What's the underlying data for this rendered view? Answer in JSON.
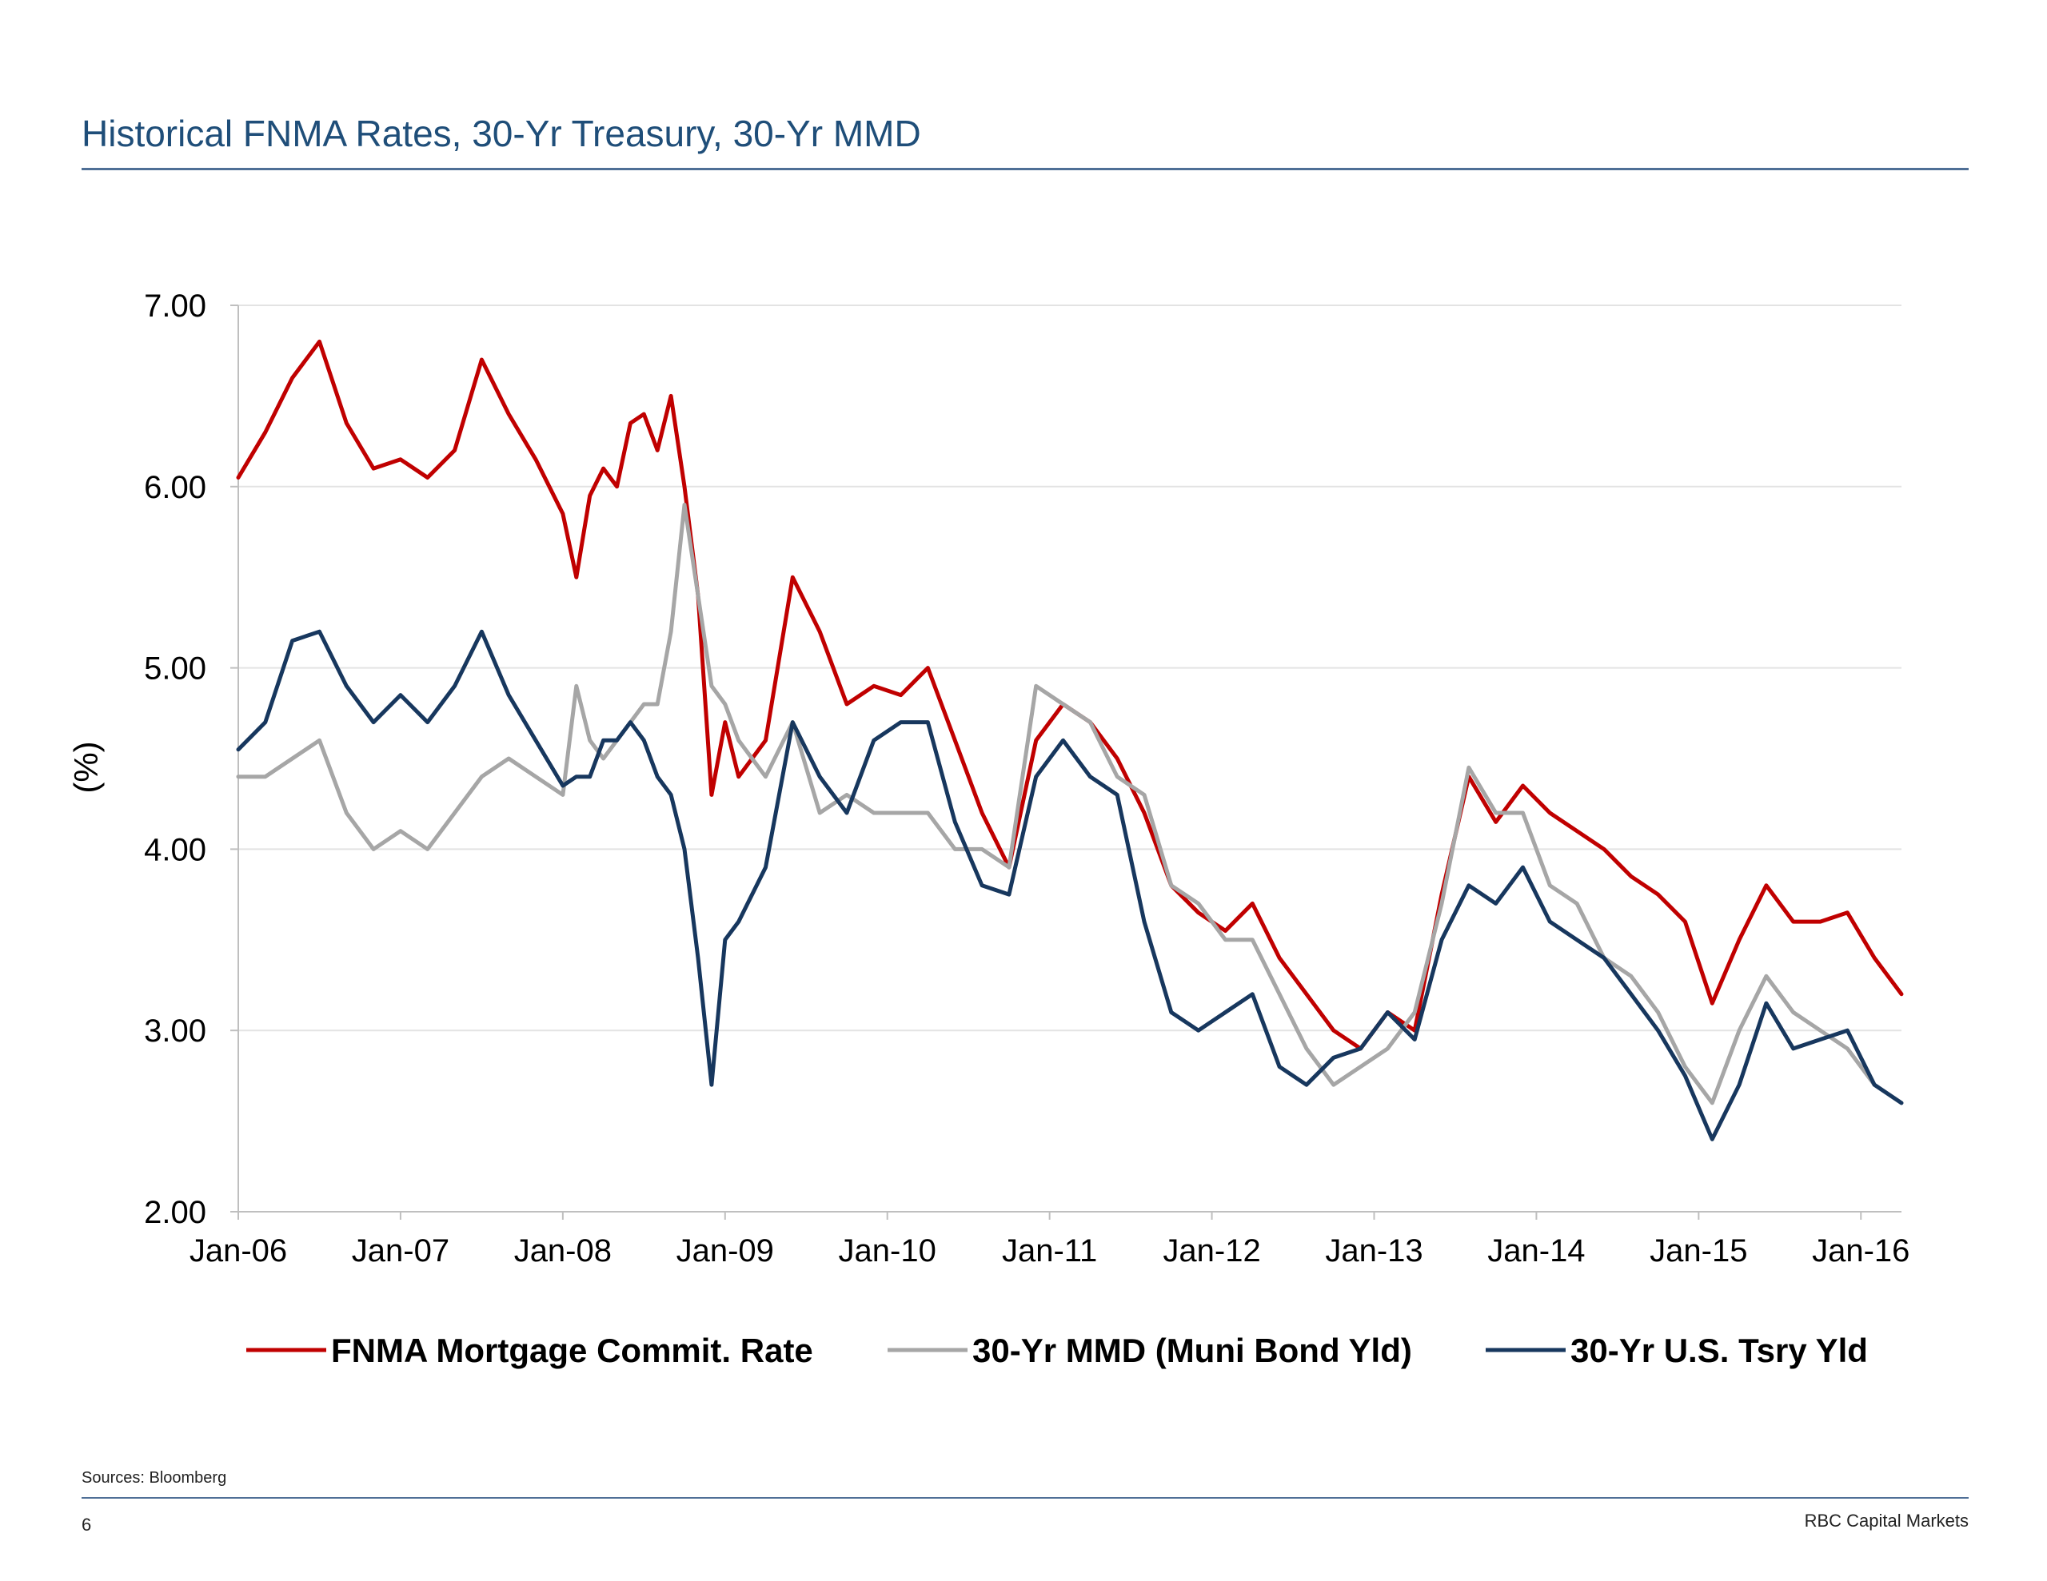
{
  "header": {
    "title": "Historical FNMA Rates, 30-Yr Treasury, 30-Yr MMD"
  },
  "footer": {
    "source": "Sources: Bloomberg",
    "page_number": "6",
    "brand": "RBC Capital Markets"
  },
  "chart_data": {
    "type": "line",
    "title": "",
    "xlabel": "",
    "ylabel": "(%)",
    "ylim": [
      2.0,
      7.0
    ],
    "yticks": [
      "2.00",
      "3.00",
      "4.00",
      "5.00",
      "6.00",
      "7.00"
    ],
    "xlim": [
      "2006-01",
      "2016-04"
    ],
    "xticks": [
      "Jan-06",
      "Jan-07",
      "Jan-08",
      "Jan-09",
      "Jan-10",
      "Jan-11",
      "Jan-12",
      "Jan-13",
      "Jan-14",
      "Jan-15",
      "Jan-16"
    ],
    "grid": true,
    "legend_position": "bottom",
    "series": [
      {
        "name": "FNMA Mortgage Commit. Rate",
        "color": "#c00000",
        "x": [
          "2006-01",
          "2006-03",
          "2006-05",
          "2006-07",
          "2006-09",
          "2006-11",
          "2007-01",
          "2007-03",
          "2007-05",
          "2007-07",
          "2007-09",
          "2007-11",
          "2008-01",
          "2008-02",
          "2008-03",
          "2008-04",
          "2008-05",
          "2008-06",
          "2008-07",
          "2008-08",
          "2008-09",
          "2008-10",
          "2008-11",
          "2008-12",
          "2009-01",
          "2009-02",
          "2009-04",
          "2009-06",
          "2009-08",
          "2009-10",
          "2009-12",
          "2010-02",
          "2010-04",
          "2010-06",
          "2010-08",
          "2010-10",
          "2010-12",
          "2011-02",
          "2011-04",
          "2011-06",
          "2011-08",
          "2011-10",
          "2011-12",
          "2012-02",
          "2012-04",
          "2012-06",
          "2012-08",
          "2012-10",
          "2012-12",
          "2013-02",
          "2013-04",
          "2013-06",
          "2013-08",
          "2013-10",
          "2013-12",
          "2014-02",
          "2014-04",
          "2014-06",
          "2014-08",
          "2014-10",
          "2014-12",
          "2015-02",
          "2015-04",
          "2015-06",
          "2015-08",
          "2015-10",
          "2015-12",
          "2016-02",
          "2016-04"
        ],
        "values": [
          6.05,
          6.3,
          6.6,
          6.8,
          6.35,
          6.1,
          6.15,
          6.05,
          6.2,
          6.7,
          6.4,
          6.15,
          5.85,
          5.5,
          5.95,
          6.1,
          6.0,
          6.35,
          6.4,
          6.2,
          6.5,
          6.0,
          5.4,
          4.3,
          4.7,
          4.4,
          4.6,
          5.5,
          5.2,
          4.8,
          4.9,
          4.85,
          5.0,
          4.6,
          4.2,
          3.9,
          4.6,
          4.8,
          4.7,
          4.5,
          4.2,
          3.8,
          3.65,
          3.55,
          3.7,
          3.4,
          3.2,
          3.0,
          2.9,
          3.1,
          3.0,
          3.75,
          4.4,
          4.15,
          4.35,
          4.2,
          4.1,
          4.0,
          3.85,
          3.75,
          3.6,
          3.15,
          3.5,
          3.8,
          3.6,
          3.6,
          3.65,
          3.4,
          3.2
        ]
      },
      {
        "name": "30-Yr MMD (Muni Bond Yld)",
        "color": "#a6a6a6",
        "x": [
          "2006-01",
          "2006-03",
          "2006-05",
          "2006-07",
          "2006-09",
          "2006-11",
          "2007-01",
          "2007-03",
          "2007-05",
          "2007-07",
          "2007-09",
          "2007-11",
          "2008-01",
          "2008-02",
          "2008-03",
          "2008-04",
          "2008-05",
          "2008-06",
          "2008-07",
          "2008-08",
          "2008-09",
          "2008-10",
          "2008-11",
          "2008-12",
          "2009-01",
          "2009-02",
          "2009-04",
          "2009-06",
          "2009-08",
          "2009-10",
          "2009-12",
          "2010-02",
          "2010-04",
          "2010-06",
          "2010-08",
          "2010-10",
          "2010-12",
          "2011-02",
          "2011-04",
          "2011-06",
          "2011-08",
          "2011-10",
          "2011-12",
          "2012-02",
          "2012-04",
          "2012-06",
          "2012-08",
          "2012-10",
          "2012-12",
          "2013-02",
          "2013-04",
          "2013-06",
          "2013-08",
          "2013-10",
          "2013-12",
          "2014-02",
          "2014-04",
          "2014-06",
          "2014-08",
          "2014-10",
          "2014-12",
          "2015-02",
          "2015-04",
          "2015-06",
          "2015-08",
          "2015-10",
          "2015-12",
          "2016-02",
          "2016-04"
        ],
        "values": [
          4.4,
          4.4,
          4.5,
          4.6,
          4.2,
          4.0,
          4.1,
          4.0,
          4.2,
          4.4,
          4.5,
          4.4,
          4.3,
          4.9,
          4.6,
          4.5,
          4.6,
          4.7,
          4.8,
          4.8,
          5.2,
          5.9,
          5.4,
          4.9,
          4.8,
          4.6,
          4.4,
          4.7,
          4.2,
          4.3,
          4.2,
          4.2,
          4.2,
          4.0,
          4.0,
          3.9,
          4.9,
          4.8,
          4.7,
          4.4,
          4.3,
          3.8,
          3.7,
          3.5,
          3.5,
          3.2,
          2.9,
          2.7,
          2.8,
          2.9,
          3.1,
          3.7,
          4.45,
          4.2,
          4.2,
          3.8,
          3.7,
          3.4,
          3.3,
          3.1,
          2.8,
          2.6,
          3.0,
          3.3,
          3.1,
          3.0,
          2.9,
          2.7,
          2.6
        ]
      },
      {
        "name": "30-Yr U.S. Tsry Yld",
        "color": "#17375e",
        "x": [
          "2006-01",
          "2006-03",
          "2006-05",
          "2006-07",
          "2006-09",
          "2006-11",
          "2007-01",
          "2007-03",
          "2007-05",
          "2007-07",
          "2007-09",
          "2007-11",
          "2008-01",
          "2008-02",
          "2008-03",
          "2008-04",
          "2008-05",
          "2008-06",
          "2008-07",
          "2008-08",
          "2008-09",
          "2008-10",
          "2008-11",
          "2008-12",
          "2009-01",
          "2009-02",
          "2009-04",
          "2009-06",
          "2009-08",
          "2009-10",
          "2009-12",
          "2010-02",
          "2010-04",
          "2010-06",
          "2010-08",
          "2010-10",
          "2010-12",
          "2011-02",
          "2011-04",
          "2011-06",
          "2011-08",
          "2011-10",
          "2011-12",
          "2012-02",
          "2012-04",
          "2012-06",
          "2012-08",
          "2012-10",
          "2012-12",
          "2013-02",
          "2013-04",
          "2013-06",
          "2013-08",
          "2013-10",
          "2013-12",
          "2014-02",
          "2014-04",
          "2014-06",
          "2014-08",
          "2014-10",
          "2014-12",
          "2015-02",
          "2015-04",
          "2015-06",
          "2015-08",
          "2015-10",
          "2015-12",
          "2016-02",
          "2016-04"
        ],
        "values": [
          4.55,
          4.7,
          5.15,
          5.2,
          4.9,
          4.7,
          4.85,
          4.7,
          4.9,
          5.2,
          4.85,
          4.6,
          4.35,
          4.4,
          4.4,
          4.6,
          4.6,
          4.7,
          4.6,
          4.4,
          4.3,
          4.0,
          3.4,
          2.7,
          3.5,
          3.6,
          3.9,
          4.7,
          4.4,
          4.2,
          4.6,
          4.7,
          4.7,
          4.15,
          3.8,
          3.75,
          4.4,
          4.6,
          4.4,
          4.3,
          3.6,
          3.1,
          3.0,
          3.1,
          3.2,
          2.8,
          2.7,
          2.85,
          2.9,
          3.1,
          2.95,
          3.5,
          3.8,
          3.7,
          3.9,
          3.6,
          3.5,
          3.4,
          3.2,
          3.0,
          2.75,
          2.4,
          2.7,
          3.15,
          2.9,
          2.95,
          3.0,
          2.7,
          2.6
        ]
      }
    ]
  }
}
